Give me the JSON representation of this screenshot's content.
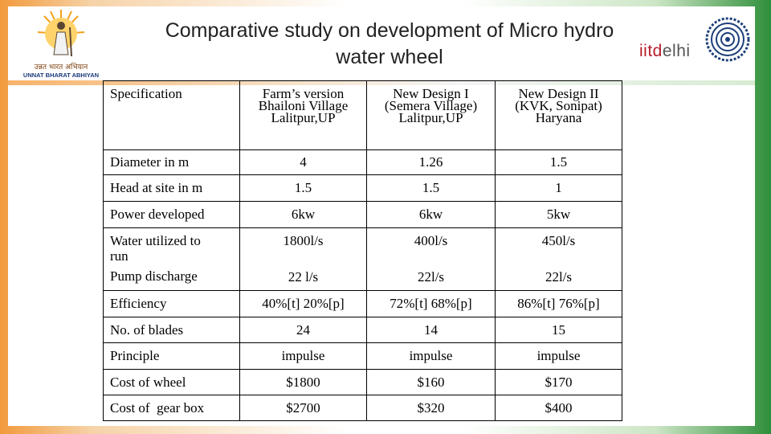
{
  "title": {
    "line1": "Comparative study on development of Micro hydro",
    "line2": "water wheel"
  },
  "logos": {
    "left_hindi": "उन्नत भारत अभियान",
    "left_english": "UNNAT BHARAT ABHIYAN",
    "right_text_bold": "iitd",
    "right_text_light": "elhi"
  },
  "table": {
    "header": {
      "spec": "Specification",
      "col1": [
        "Farm’s version",
        "Bhailoni Village",
        "Lalitpur,UP"
      ],
      "col2": [
        "New Design I",
        "(Semera Village)",
        "Lalitpur,UP"
      ],
      "col3": [
        "New Design II",
        "(KVK, Sonipat)",
        "Haryana"
      ]
    },
    "rows": [
      {
        "label": "Diameter in m",
        "v1": "4",
        "v2": "1.26",
        "v3": "1.5"
      },
      {
        "label": "Head at site in m",
        "v1": "1.5",
        "v2": "1.5",
        "v3": "1"
      },
      {
        "label": "Power developed",
        "v1": "6kw",
        "v2": "6kw",
        "v3": "5kw"
      },
      {
        "label": "Water utilized to",
        "label2": "run",
        "label3": "Pump discharge",
        "v1": "1800l/s",
        "v1b": "22 l/s",
        "v2": "400l/s",
        "v2b": "22l/s",
        "v3": "450l/s",
        "v3b": "22l/s"
      },
      {
        "label": "Efficiency",
        "v1": "40%[t] 20%[p]",
        "v2": "72%[t] 68%[p]",
        "v3": "86%[t] 76%[p]"
      },
      {
        "label": "No. of blades",
        "v1": "24",
        "v2": "14",
        "v3": "15"
      },
      {
        "label": "Principle",
        "v1": "impulse",
        "v2": "impulse",
        "v3": "impulse"
      },
      {
        "label": "Cost of wheel",
        "v1": "$1800",
        "v2": "$160",
        "v3": "$170"
      },
      {
        "label": "Cost of  gear box",
        "v1": "$2700",
        "v2": "$320",
        "v3": "$400"
      }
    ]
  }
}
